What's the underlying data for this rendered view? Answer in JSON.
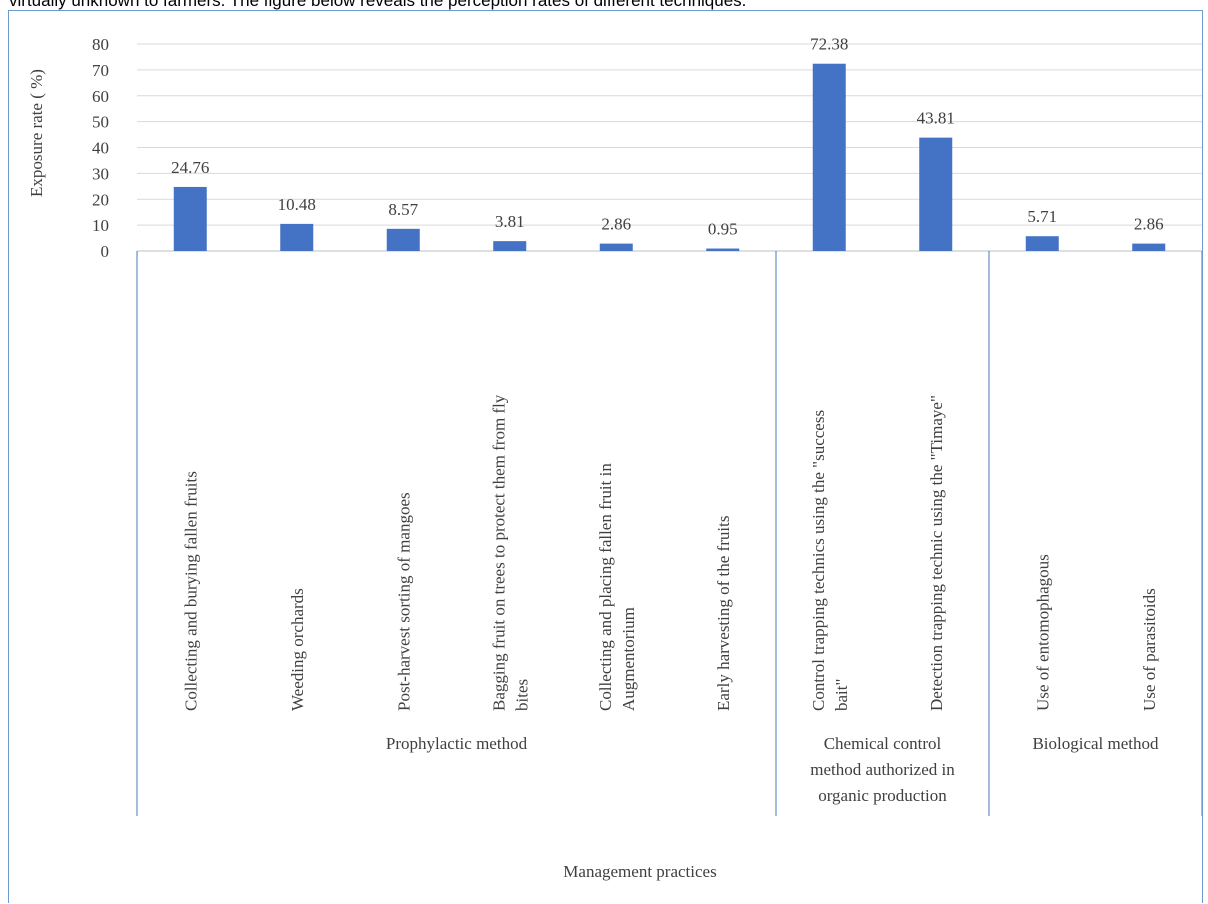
{
  "intro_text": "virtually unknown to farmers. The figure below reveals the perception rates of different techniques.",
  "colors": {
    "bar": "#4472c4",
    "frame": "#6a9bd1",
    "grid": "#d9d9d9",
    "text": "#404040"
  },
  "chart_data": {
    "type": "bar",
    "title": "",
    "ylabel": "Exposure rate ( %)",
    "xlabel": "Management practices",
    "ylim": [
      0,
      80
    ],
    "yticks": [
      0,
      10,
      20,
      30,
      40,
      50,
      60,
      70,
      80
    ],
    "grid": true,
    "categories": [
      [
        "Collecting and burying fallen fruits"
      ],
      [
        "Weeding orchards"
      ],
      [
        "Post-harvest sorting of mangoes"
      ],
      [
        "Bagging fruit on trees to protect them from fly",
        "bites"
      ],
      [
        "Collecting and placing fallen fruit in",
        "Augmentorium"
      ],
      [
        "Early harvesting of the fruits"
      ],
      [
        "Control trapping technics using  the \"success",
        "bait\""
      ],
      [
        "Detection trapping technic using the \"Timaye\""
      ],
      [
        "Use of entomophagous"
      ],
      [
        "Use of parasitoids"
      ]
    ],
    "values": [
      24.76,
      10.48,
      8.57,
      3.81,
      2.86,
      0.95,
      72.38,
      43.81,
      5.71,
      2.86
    ],
    "data_labels": [
      "24.76",
      "10.48",
      "8.57",
      "3.81",
      "2.86",
      "0.95",
      "72.38",
      "43.81",
      "5.71",
      "2.86"
    ],
    "groups": [
      {
        "label": [
          "Prophylactic method"
        ],
        "start": 0,
        "end": 5
      },
      {
        "label": [
          "Chemical control",
          "method authorized in",
          "organic production"
        ],
        "start": 6,
        "end": 7
      },
      {
        "label": [
          "Biological method"
        ],
        "start": 8,
        "end": 9
      }
    ]
  }
}
